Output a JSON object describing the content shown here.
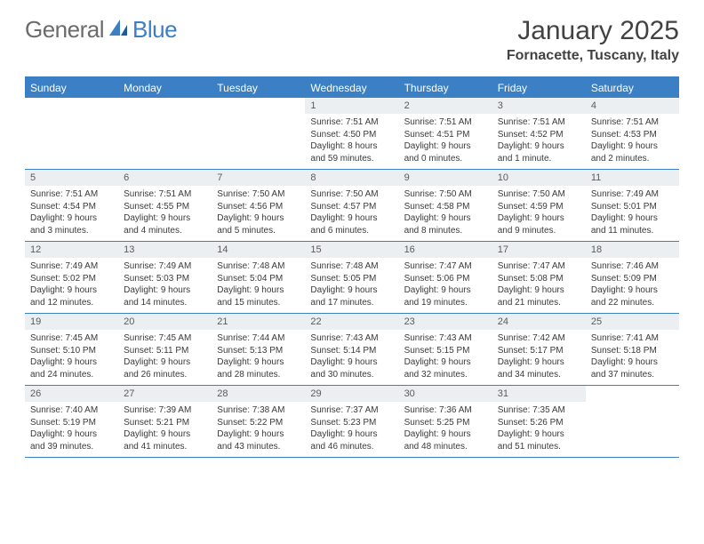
{
  "logo": {
    "text1": "General",
    "text2": "Blue"
  },
  "title": "January 2025",
  "location": "Fornacette, Tuscany, Italy",
  "colors": {
    "header_blue": "#3b7fc4",
    "daynum_bg": "#eceff1",
    "text_gray": "#424242",
    "logo_gray": "#6b6b6b"
  },
  "daynames": [
    "Sunday",
    "Monday",
    "Tuesday",
    "Wednesday",
    "Thursday",
    "Friday",
    "Saturday"
  ],
  "weeks": [
    {
      "cells": [
        {
          "empty": true
        },
        {
          "empty": true
        },
        {
          "empty": true
        },
        {
          "num": "1",
          "sunrise": "Sunrise: 7:51 AM",
          "sunset": "Sunset: 4:50 PM",
          "daylight": "Daylight: 8 hours and 59 minutes."
        },
        {
          "num": "2",
          "sunrise": "Sunrise: 7:51 AM",
          "sunset": "Sunset: 4:51 PM",
          "daylight": "Daylight: 9 hours and 0 minutes."
        },
        {
          "num": "3",
          "sunrise": "Sunrise: 7:51 AM",
          "sunset": "Sunset: 4:52 PM",
          "daylight": "Daylight: 9 hours and 1 minute."
        },
        {
          "num": "4",
          "sunrise": "Sunrise: 7:51 AM",
          "sunset": "Sunset: 4:53 PM",
          "daylight": "Daylight: 9 hours and 2 minutes."
        }
      ]
    },
    {
      "cells": [
        {
          "num": "5",
          "sunrise": "Sunrise: 7:51 AM",
          "sunset": "Sunset: 4:54 PM",
          "daylight": "Daylight: 9 hours and 3 minutes."
        },
        {
          "num": "6",
          "sunrise": "Sunrise: 7:51 AM",
          "sunset": "Sunset: 4:55 PM",
          "daylight": "Daylight: 9 hours and 4 minutes."
        },
        {
          "num": "7",
          "sunrise": "Sunrise: 7:50 AM",
          "sunset": "Sunset: 4:56 PM",
          "daylight": "Daylight: 9 hours and 5 minutes."
        },
        {
          "num": "8",
          "sunrise": "Sunrise: 7:50 AM",
          "sunset": "Sunset: 4:57 PM",
          "daylight": "Daylight: 9 hours and 6 minutes."
        },
        {
          "num": "9",
          "sunrise": "Sunrise: 7:50 AM",
          "sunset": "Sunset: 4:58 PM",
          "daylight": "Daylight: 9 hours and 8 minutes."
        },
        {
          "num": "10",
          "sunrise": "Sunrise: 7:50 AM",
          "sunset": "Sunset: 4:59 PM",
          "daylight": "Daylight: 9 hours and 9 minutes."
        },
        {
          "num": "11",
          "sunrise": "Sunrise: 7:49 AM",
          "sunset": "Sunset: 5:01 PM",
          "daylight": "Daylight: 9 hours and 11 minutes."
        }
      ]
    },
    {
      "cells": [
        {
          "num": "12",
          "sunrise": "Sunrise: 7:49 AM",
          "sunset": "Sunset: 5:02 PM",
          "daylight": "Daylight: 9 hours and 12 minutes."
        },
        {
          "num": "13",
          "sunrise": "Sunrise: 7:49 AM",
          "sunset": "Sunset: 5:03 PM",
          "daylight": "Daylight: 9 hours and 14 minutes."
        },
        {
          "num": "14",
          "sunrise": "Sunrise: 7:48 AM",
          "sunset": "Sunset: 5:04 PM",
          "daylight": "Daylight: 9 hours and 15 minutes."
        },
        {
          "num": "15",
          "sunrise": "Sunrise: 7:48 AM",
          "sunset": "Sunset: 5:05 PM",
          "daylight": "Daylight: 9 hours and 17 minutes."
        },
        {
          "num": "16",
          "sunrise": "Sunrise: 7:47 AM",
          "sunset": "Sunset: 5:06 PM",
          "daylight": "Daylight: 9 hours and 19 minutes."
        },
        {
          "num": "17",
          "sunrise": "Sunrise: 7:47 AM",
          "sunset": "Sunset: 5:08 PM",
          "daylight": "Daylight: 9 hours and 21 minutes."
        },
        {
          "num": "18",
          "sunrise": "Sunrise: 7:46 AM",
          "sunset": "Sunset: 5:09 PM",
          "daylight": "Daylight: 9 hours and 22 minutes."
        }
      ]
    },
    {
      "cells": [
        {
          "num": "19",
          "sunrise": "Sunrise: 7:45 AM",
          "sunset": "Sunset: 5:10 PM",
          "daylight": "Daylight: 9 hours and 24 minutes."
        },
        {
          "num": "20",
          "sunrise": "Sunrise: 7:45 AM",
          "sunset": "Sunset: 5:11 PM",
          "daylight": "Daylight: 9 hours and 26 minutes."
        },
        {
          "num": "21",
          "sunrise": "Sunrise: 7:44 AM",
          "sunset": "Sunset: 5:13 PM",
          "daylight": "Daylight: 9 hours and 28 minutes."
        },
        {
          "num": "22",
          "sunrise": "Sunrise: 7:43 AM",
          "sunset": "Sunset: 5:14 PM",
          "daylight": "Daylight: 9 hours and 30 minutes."
        },
        {
          "num": "23",
          "sunrise": "Sunrise: 7:43 AM",
          "sunset": "Sunset: 5:15 PM",
          "daylight": "Daylight: 9 hours and 32 minutes."
        },
        {
          "num": "24",
          "sunrise": "Sunrise: 7:42 AM",
          "sunset": "Sunset: 5:17 PM",
          "daylight": "Daylight: 9 hours and 34 minutes."
        },
        {
          "num": "25",
          "sunrise": "Sunrise: 7:41 AM",
          "sunset": "Sunset: 5:18 PM",
          "daylight": "Daylight: 9 hours and 37 minutes."
        }
      ]
    },
    {
      "cells": [
        {
          "num": "26",
          "sunrise": "Sunrise: 7:40 AM",
          "sunset": "Sunset: 5:19 PM",
          "daylight": "Daylight: 9 hours and 39 minutes."
        },
        {
          "num": "27",
          "sunrise": "Sunrise: 7:39 AM",
          "sunset": "Sunset: 5:21 PM",
          "daylight": "Daylight: 9 hours and 41 minutes."
        },
        {
          "num": "28",
          "sunrise": "Sunrise: 7:38 AM",
          "sunset": "Sunset: 5:22 PM",
          "daylight": "Daylight: 9 hours and 43 minutes."
        },
        {
          "num": "29",
          "sunrise": "Sunrise: 7:37 AM",
          "sunset": "Sunset: 5:23 PM",
          "daylight": "Daylight: 9 hours and 46 minutes."
        },
        {
          "num": "30",
          "sunrise": "Sunrise: 7:36 AM",
          "sunset": "Sunset: 5:25 PM",
          "daylight": "Daylight: 9 hours and 48 minutes."
        },
        {
          "num": "31",
          "sunrise": "Sunrise: 7:35 AM",
          "sunset": "Sunset: 5:26 PM",
          "daylight": "Daylight: 9 hours and 51 minutes."
        },
        {
          "empty": true
        }
      ]
    }
  ]
}
